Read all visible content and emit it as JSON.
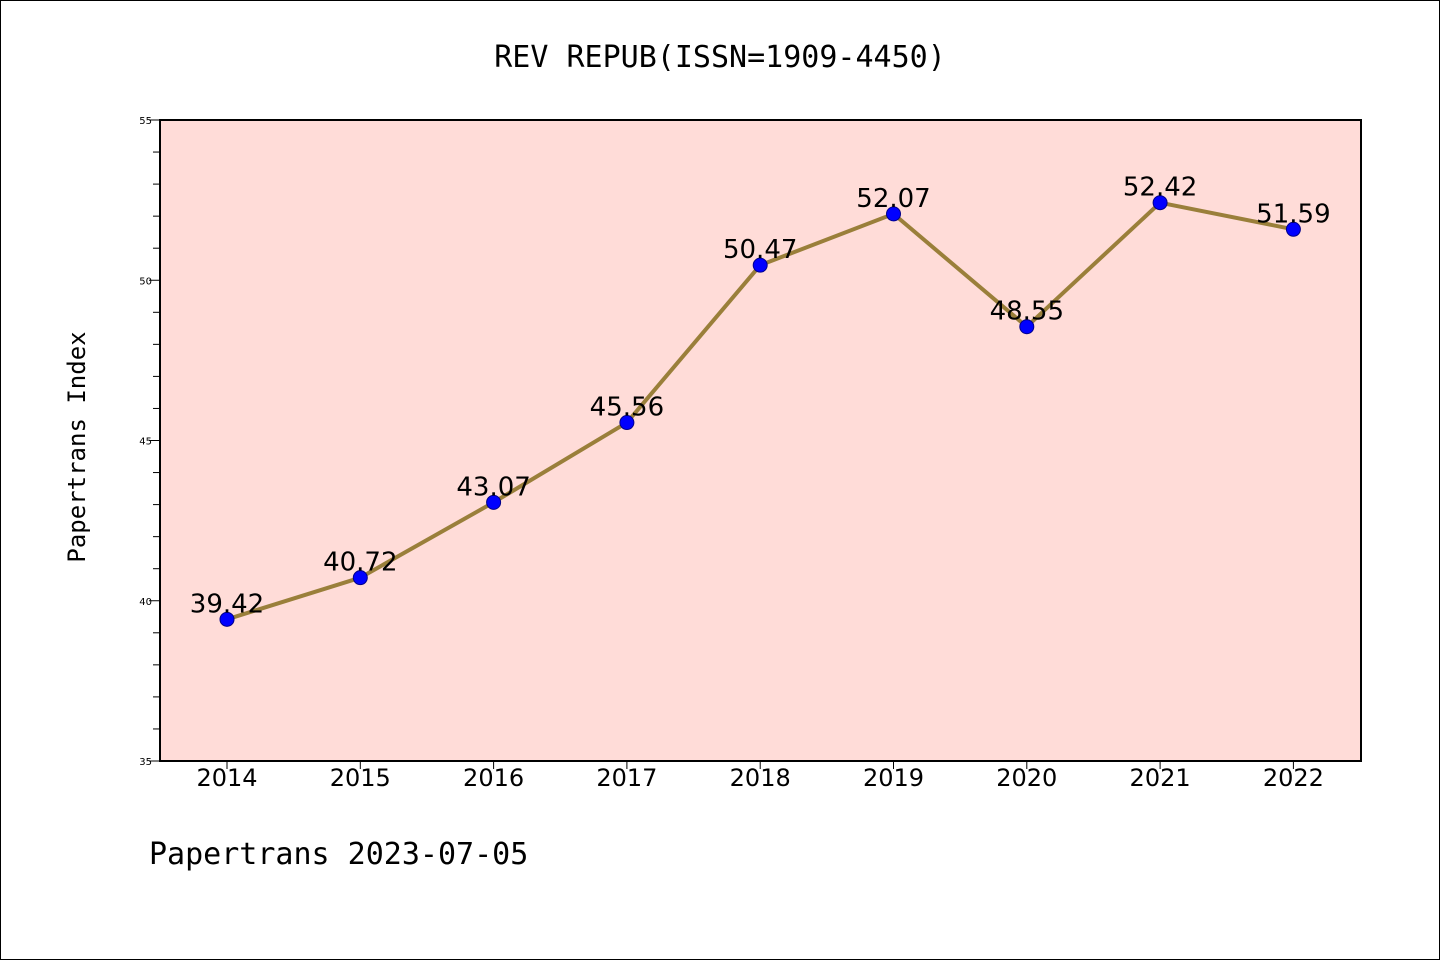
{
  "chart_data": {
    "type": "line",
    "title": "REV REPUB(ISSN=1909-4450)",
    "ylabel": "Papertrans Index",
    "xlabel": "",
    "footer": "Papertrans 2023-07-05",
    "categories": [
      "2014",
      "2015",
      "2016",
      "2017",
      "2018",
      "2019",
      "2020",
      "2021",
      "2022"
    ],
    "series": [
      {
        "values": [
          39.42,
          40.72,
          43.07,
          45.56,
          50.47,
          52.07,
          48.55,
          52.42,
          51.59
        ],
        "labels": [
          "39.42",
          "40.72",
          "43.07",
          "45.56",
          "50.47",
          "52.07",
          "48.55",
          "52.42",
          "51.59"
        ]
      }
    ],
    "ylim": [
      35,
      55
    ],
    "yticks": [
      "35",
      "40",
      "45",
      "50",
      "55"
    ],
    "grid": false,
    "legend": "none",
    "colors": {
      "plot_background": "#ffdcd8",
      "line": "#9a7f3a",
      "marker": "#0000ff"
    }
  }
}
